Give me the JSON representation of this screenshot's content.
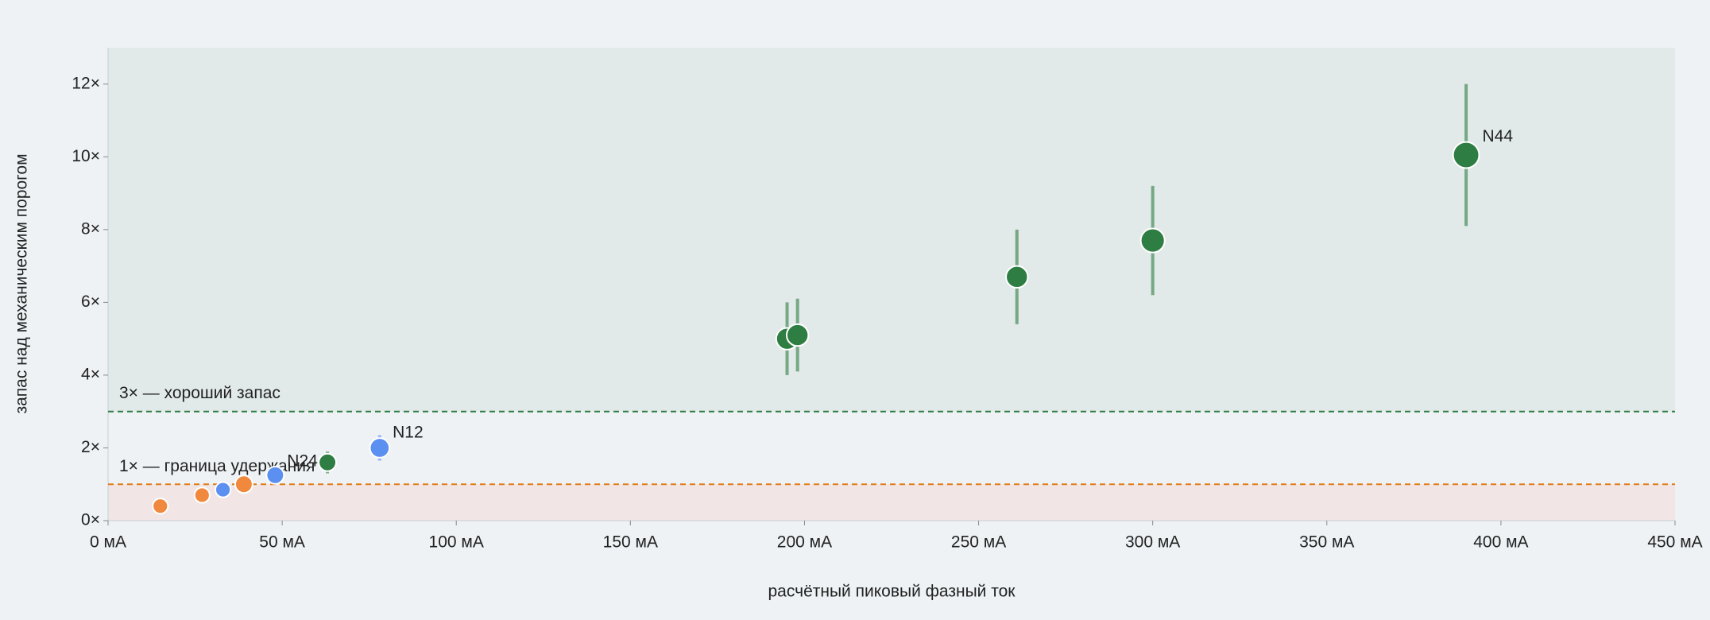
{
  "chart_data": {
    "type": "scatter",
    "x_label": "расчётный пиковый фазный ток",
    "y_label": "запас над механическим порогом",
    "xlim": [
      0,
      450
    ],
    "xticks": [
      {
        "value": 0,
        "label": "0 мА"
      },
      {
        "value": 50,
        "label": "50 мА"
      },
      {
        "value": 100,
        "label": "100 мА"
      },
      {
        "value": 150,
        "label": "150 мА"
      },
      {
        "value": 200,
        "label": "200 мА"
      },
      {
        "value": 250,
        "label": "250 мА"
      },
      {
        "value": 300,
        "label": "300 мА"
      },
      {
        "value": 350,
        "label": "350 мА"
      },
      {
        "value": 400,
        "label": "400 мА"
      },
      {
        "value": 450,
        "label": "450 мА"
      }
    ],
    "ylim": [
      0,
      13
    ],
    "yticks": [
      {
        "value": 0,
        "label": "0×"
      },
      {
        "value": 2,
        "label": "2×"
      },
      {
        "value": 4,
        "label": "4×"
      },
      {
        "value": 6,
        "label": "6×"
      },
      {
        "value": 8,
        "label": "8×"
      },
      {
        "value": 10,
        "label": "10×"
      },
      {
        "value": 12,
        "label": "12×"
      }
    ],
    "bands": [
      {
        "from": 3,
        "to": 13,
        "color": "#e1e9e9"
      },
      {
        "from": 0,
        "to": 1,
        "color": "#f1e6e5"
      }
    ],
    "reference_lines": [
      {
        "value": 3,
        "label": "3× — хороший запас",
        "color": "#2e7d42"
      },
      {
        "value": 1,
        "label": "1× — граница удержания",
        "color": "#e07b16"
      }
    ],
    "series": [
      {
        "color": "#f0883e",
        "x": [
          15,
          27,
          39
        ],
        "values": [
          0.4,
          0.7,
          1.0
        ],
        "errors": [
          null,
          null,
          null
        ],
        "sizes": [
          7,
          7,
          8
        ],
        "labels": [
          null,
          null,
          null
        ]
      },
      {
        "color": "#5b8ff0",
        "x": [
          33,
          48,
          78
        ],
        "values": [
          0.85,
          1.25,
          2.0
        ],
        "errors": [
          null,
          null,
          0.35
        ],
        "sizes": [
          7,
          8,
          9
        ],
        "labels": [
          null,
          "N24",
          "N12"
        ]
      },
      {
        "color": "#2e7d42",
        "x": [
          63,
          195,
          198,
          261,
          300,
          390
        ],
        "values": [
          1.6,
          5.0,
          5.1,
          6.7,
          7.7,
          10.05
        ],
        "errors": [
          0.3,
          1.0,
          1.0,
          1.3,
          1.5,
          1.95
        ],
        "sizes": [
          8,
          10,
          10,
          10,
          11,
          12
        ],
        "labels": [
          null,
          null,
          null,
          null,
          null,
          "N44"
        ]
      }
    ]
  }
}
